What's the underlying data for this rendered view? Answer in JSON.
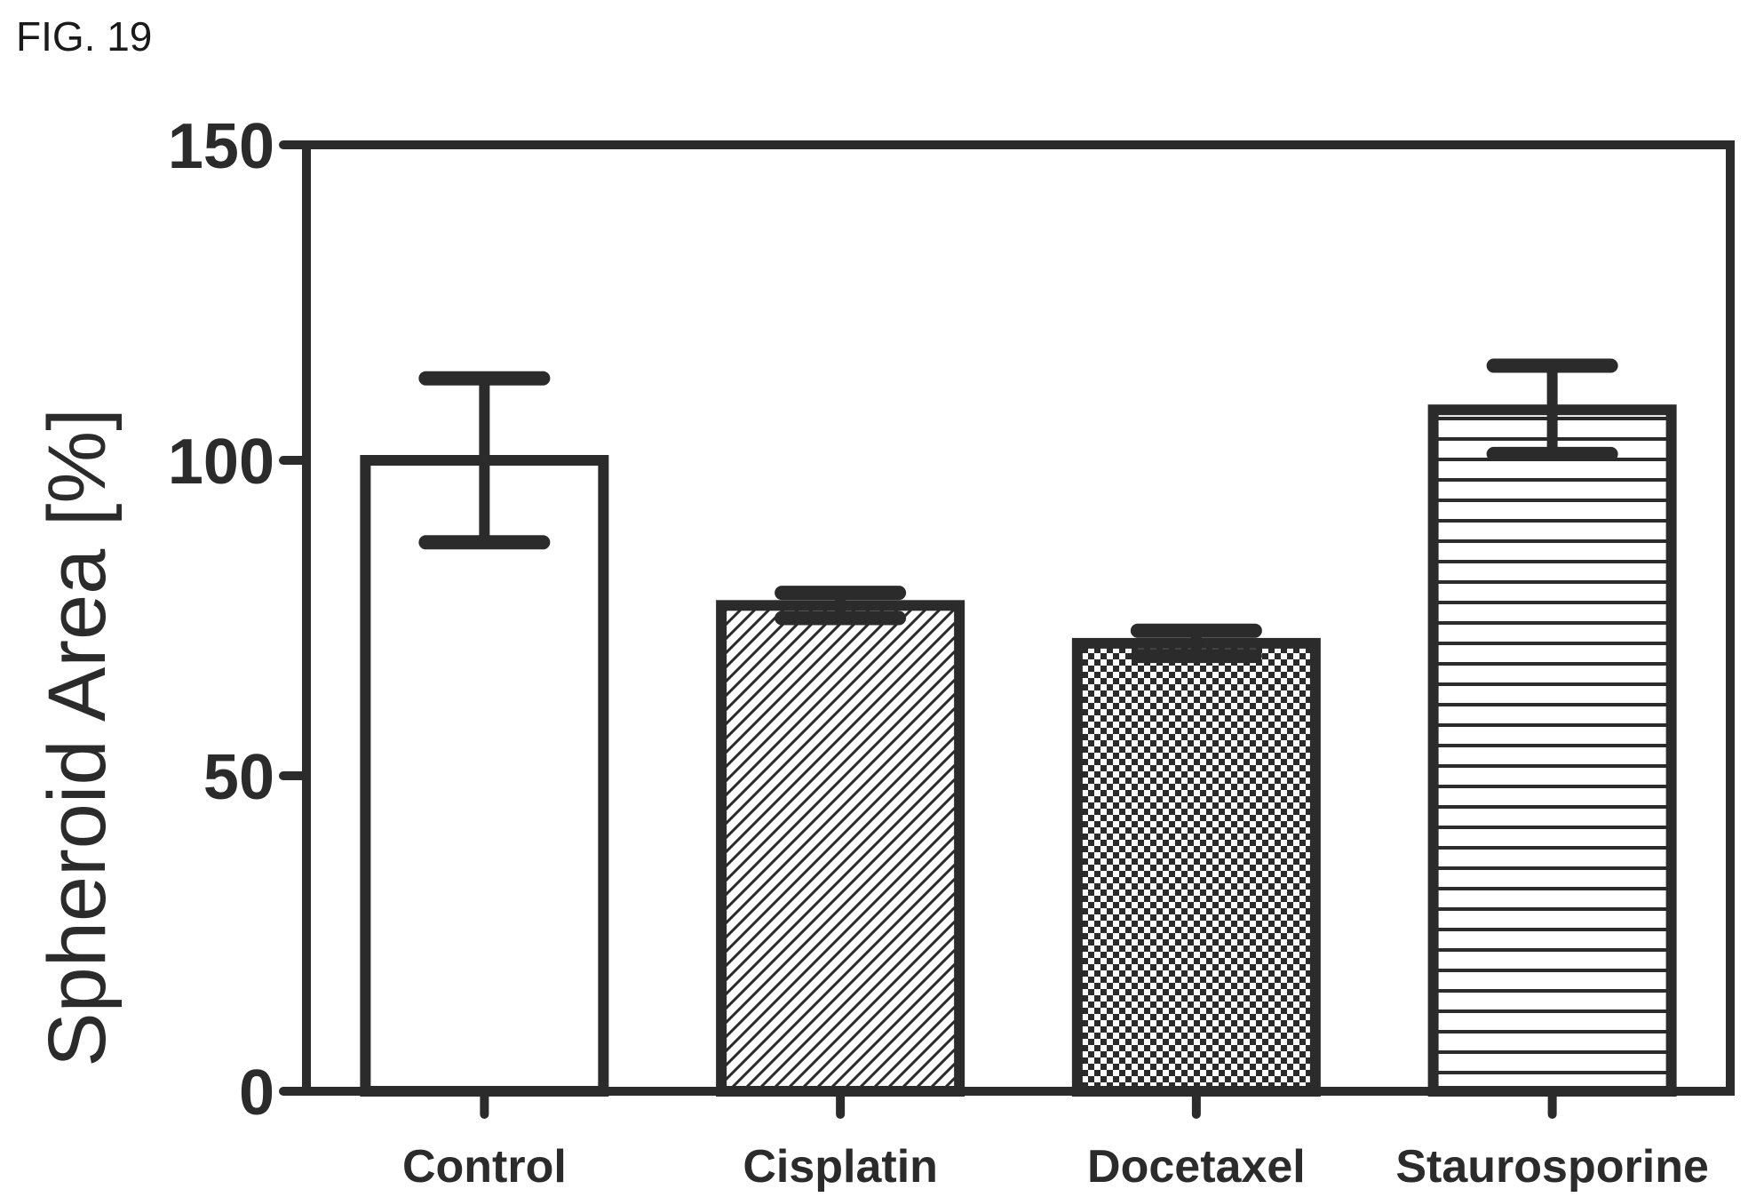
{
  "figure_label": "FIG. 19",
  "chart_data": {
    "type": "bar",
    "categories": [
      "Control",
      "Cisplatin",
      "Docetaxel",
      "Staurosporine"
    ],
    "values": [
      100,
      77,
      71,
      108
    ],
    "errors": [
      13,
      2,
      2,
      7
    ],
    "patterns": [
      "none",
      "diagonal",
      "checker",
      "horizontal"
    ],
    "title": "",
    "xlabel": "",
    "ylabel": "Spheroid Area [%]",
    "ylim": [
      0,
      150
    ],
    "yticks": [
      0,
      50,
      100,
      150
    ],
    "grid": false,
    "color": "#2b2b2b"
  }
}
